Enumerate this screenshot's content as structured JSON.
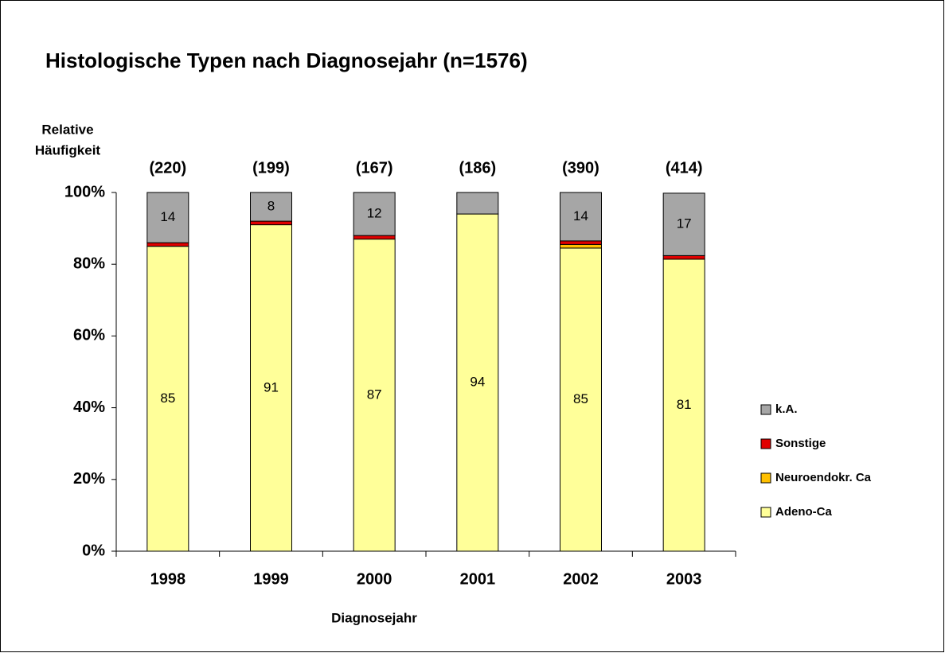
{
  "chart_data": {
    "type": "stacked_bar",
    "title": "Histologische Typen nach Diagnosejahr (n=1576)",
    "ylabel": [
      "Relative",
      "Häufigkeit"
    ],
    "xlabel": "Diagnosejahr",
    "categories": [
      "1998",
      "1999",
      "2000",
      "2001",
      "2002",
      "2003"
    ],
    "annotations": [
      "(220)",
      "(199)",
      "(167)",
      "(186)",
      "(390)",
      "(414)"
    ],
    "series": [
      {
        "name": "Adeno-Ca",
        "color": "#ffff99",
        "values": [
          85,
          91,
          87,
          94,
          84.5,
          81.4
        ],
        "value_labels": [
          "85",
          "91",
          "87",
          "94",
          "85",
          "81"
        ]
      },
      {
        "name": "Neuroendokr. Ca",
        "color": "#ffc000",
        "values": [
          0,
          0,
          0,
          0,
          1,
          0
        ],
        "value_labels": [
          null,
          null,
          null,
          null,
          null,
          null
        ]
      },
      {
        "name": "Sonstige",
        "color": "#e00000",
        "values": [
          1,
          1,
          1,
          0,
          1,
          1
        ],
        "value_labels": [
          null,
          null,
          null,
          null,
          null,
          null
        ]
      },
      {
        "name": "k.A.",
        "color": "#a6a6a6",
        "values": [
          14,
          8,
          12,
          6,
          13.5,
          17.4
        ],
        "value_labels": [
          "14",
          "8",
          "12",
          null,
          "14",
          "17"
        ]
      }
    ],
    "ylim": [
      0,
      100
    ],
    "yticks": [
      {
        "value": 0,
        "label": "0%"
      },
      {
        "value": 20,
        "label": "20%"
      },
      {
        "value": 40,
        "label": "40%"
      },
      {
        "value": 60,
        "label": "60%"
      },
      {
        "value": 80,
        "label": "80%"
      },
      {
        "value": 100,
        "label": "100%"
      }
    ],
    "legend": "right"
  }
}
